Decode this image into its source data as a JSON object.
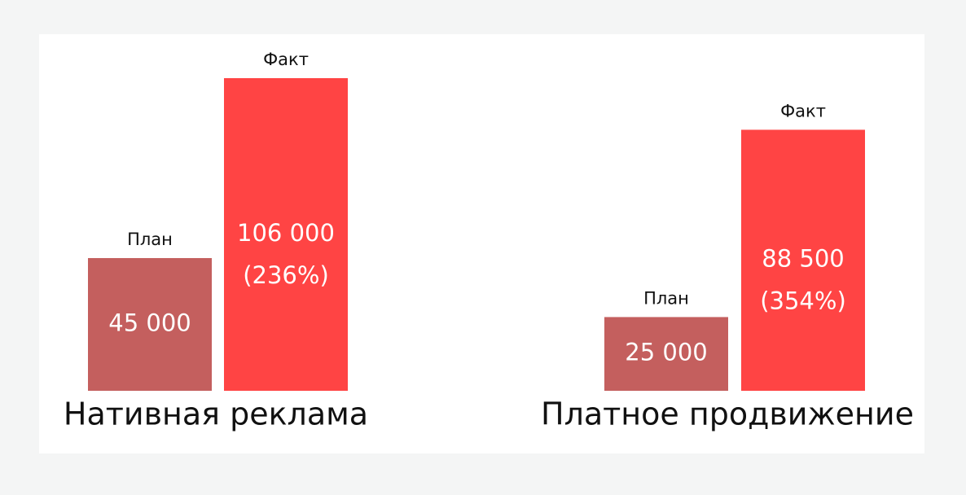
{
  "chart_data": {
    "type": "bar",
    "categories": [
      "Нативная реклама",
      "Платное продвижение"
    ],
    "series": [
      {
        "name": "План",
        "color": "#c45f5e",
        "values": [
          45000,
          25000
        ],
        "value_labels": [
          "45 000",
          "25 000"
        ]
      },
      {
        "name": "Факт",
        "color": "#ff4444",
        "values": [
          106000,
          88500
        ],
        "value_labels": [
          "106 000",
          "88 500"
        ],
        "percent_labels": [
          "(236%)",
          "(354%)"
        ]
      }
    ]
  }
}
